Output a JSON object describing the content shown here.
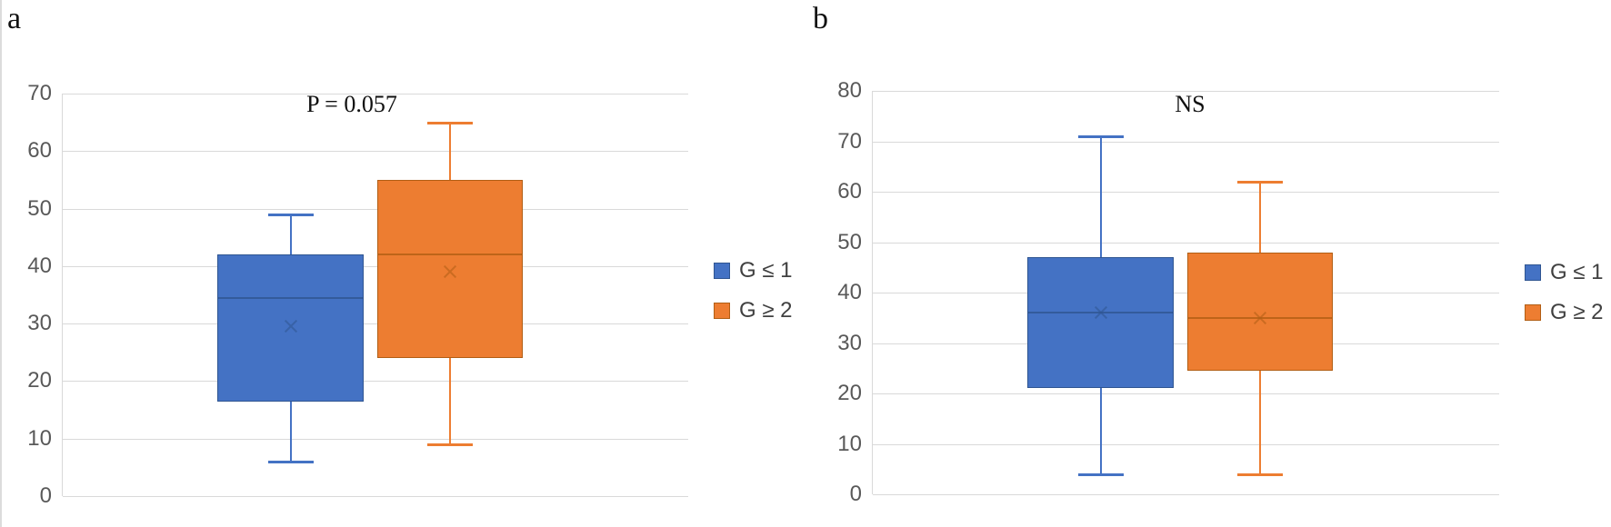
{
  "colors": {
    "gridline": "#D9D9D9",
    "axis_line": "#D9D9D9",
    "tick_label": "#595959",
    "legend_text": "#404040",
    "annotation_text": "#111111",
    "series_blue": "#4472C4",
    "series_orange": "#ED7D31"
  },
  "chart_data": [
    {
      "type": "box",
      "panel_label": "a",
      "annotation": "P = 0.057",
      "ylim": [
        0,
        70
      ],
      "ytick_step": 10,
      "grid": true,
      "legend_position": "right",
      "series": [
        {
          "name": "G ≤ 1",
          "fill": "#4472C4",
          "line": "#2F5591",
          "min": 6,
          "q1": 16.5,
          "median": 34.5,
          "mean": 29.5,
          "q3": 42,
          "max": 49
        },
        {
          "name": "G ≥ 2",
          "fill": "#ED7D31",
          "line": "#B15E14",
          "min": 9,
          "q1": 24,
          "median": 42,
          "mean": 39,
          "q3": 55,
          "max": 65
        }
      ]
    },
    {
      "type": "box",
      "panel_label": "b",
      "annotation": "NS",
      "ylim": [
        0,
        80
      ],
      "ytick_step": 10,
      "grid": true,
      "legend_position": "right",
      "series": [
        {
          "name": "G ≤ 1",
          "fill": "#4472C4",
          "line": "#2F5591",
          "min": 4,
          "q1": 21,
          "median": 36,
          "mean": 36,
          "q3": 47,
          "max": 71
        },
        {
          "name": "G ≥ 2",
          "fill": "#ED7D31",
          "line": "#B15E14",
          "min": 4,
          "q1": 24.5,
          "median": 35,
          "mean": 35,
          "q3": 48,
          "max": 62
        }
      ]
    }
  ]
}
